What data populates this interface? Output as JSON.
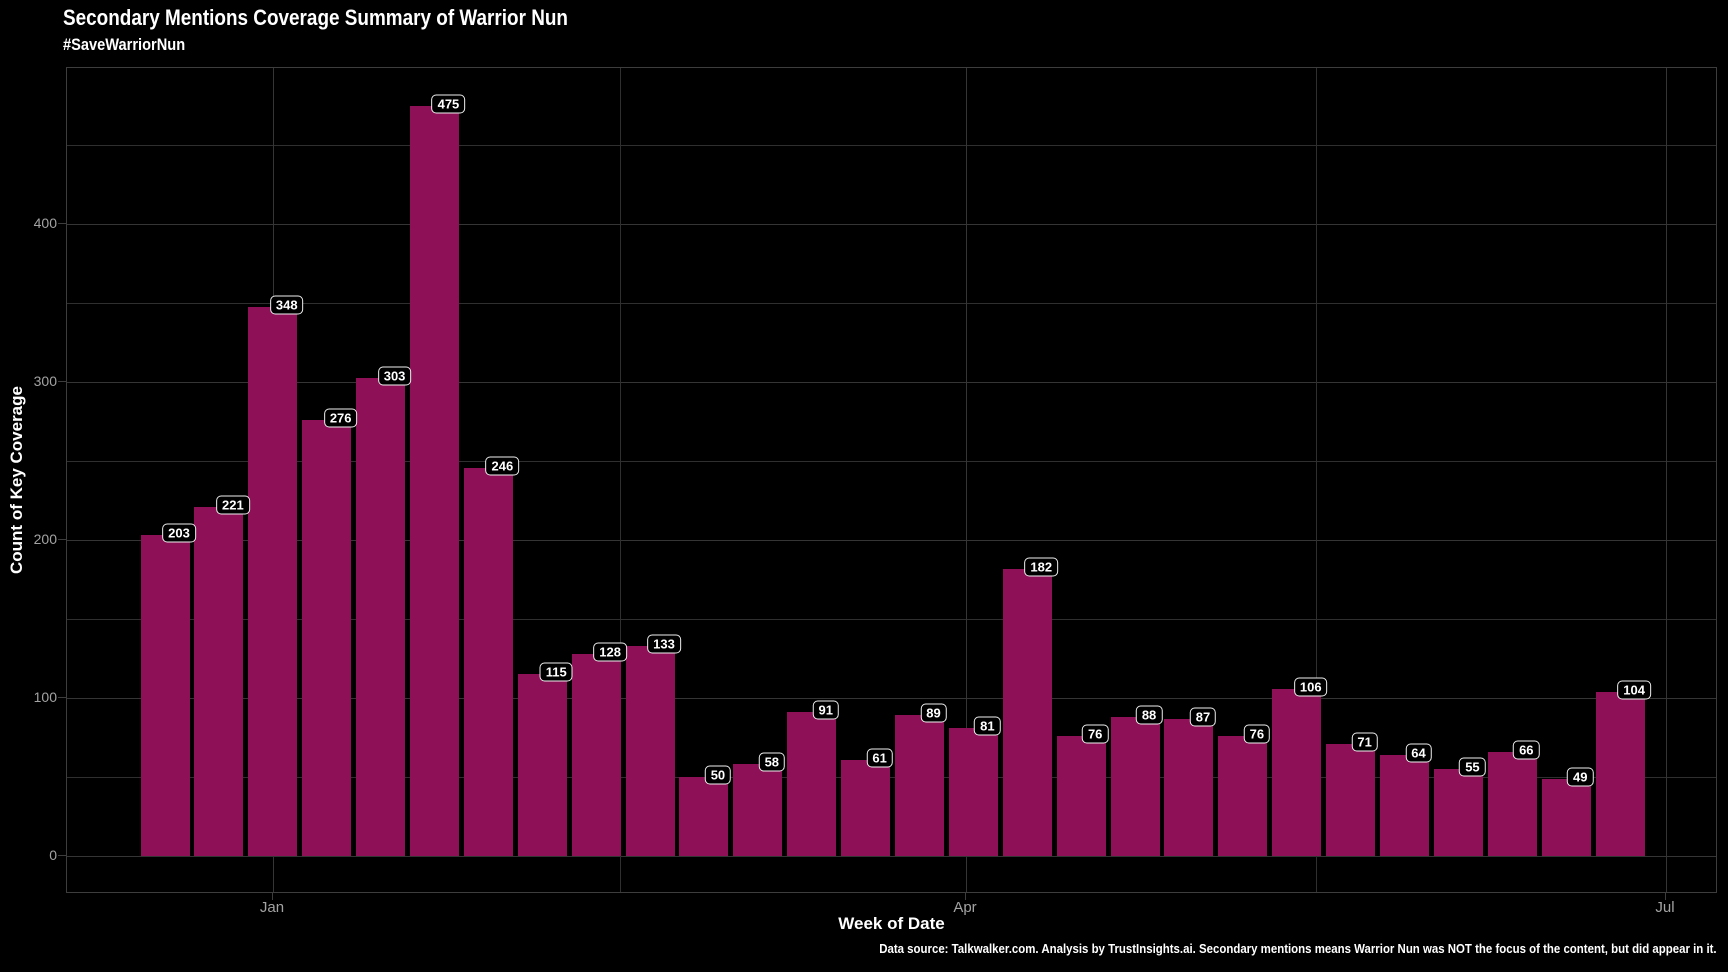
{
  "header": {
    "title": "Secondary Mentions Coverage Summary of Warrior Nun",
    "subtitle": "#SaveWarriorNun"
  },
  "chart_data": {
    "type": "bar",
    "title": "Secondary Mentions Coverage Summary of Warrior Nun",
    "subtitle": "#SaveWarriorNun",
    "xlabel": "Week of Date",
    "ylabel": "Count of Key Coverage",
    "x_unit": "week",
    "values": [
      203,
      221,
      348,
      276,
      303,
      475,
      246,
      115,
      128,
      133,
      50,
      58,
      91,
      61,
      89,
      81,
      182,
      76,
      88,
      87,
      76,
      106,
      71,
      64,
      55,
      66,
      49,
      104
    ],
    "bar_value_labels_shown": true,
    "x_tick_labels": [
      "Jan",
      "Apr",
      "Jul"
    ],
    "y_tick_values": [
      0,
      100,
      200,
      300,
      400
    ],
    "y_gridline_values": [
      0,
      50,
      100,
      150,
      200,
      250,
      300,
      350,
      400,
      450
    ],
    "ylim": [
      0,
      475
    ],
    "grid": "on",
    "legend": "none",
    "bar_color": "#8e1057",
    "background_color": "#000000",
    "label_chip_border_color": "#efefef",
    "tick_text_color": "#a3a3a3"
  },
  "footer": {
    "note": "Data source: Talkwalker.com. Analysis by TrustInsights.ai. Secondary mentions means Warrior Nun was NOT the focus of the content, but did appear in it."
  }
}
